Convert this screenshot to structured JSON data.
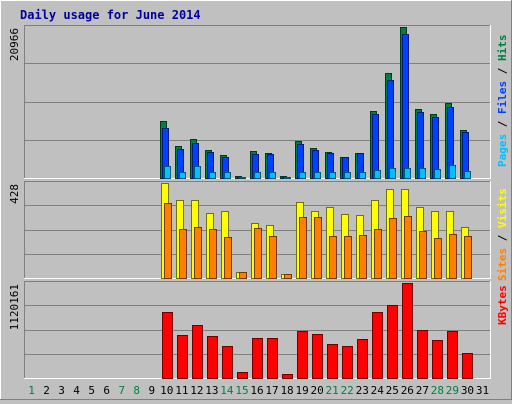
{
  "chart_data": {
    "type": "bar",
    "title": "Daily usage for June 2014",
    "colors": {
      "title": "#0000a0",
      "hits": "#008040",
      "files": "#0040ff",
      "pages": "#00c0ff",
      "visits": "#ffff00",
      "sites": "#ff8000",
      "kbytes": "#ff0000",
      "weekend_day": "#008040",
      "weekday": "#000000"
    },
    "days": [
      "1",
      "2",
      "3",
      "4",
      "5",
      "6",
      "7",
      "8",
      "9",
      "10",
      "11",
      "12",
      "13",
      "14",
      "15",
      "16",
      "17",
      "18",
      "19",
      "20",
      "21",
      "22",
      "23",
      "24",
      "25",
      "26",
      "27",
      "28",
      "29",
      "30",
      "31"
    ],
    "weekend_days": [
      "1",
      "7",
      "8",
      "14",
      "15",
      "21",
      "22",
      "28",
      "29"
    ],
    "panels": [
      {
        "id": "hits",
        "axis_max_label": "20966",
        "ymax": 20966,
        "legend": [
          {
            "text": "Pages",
            "color": "#00c0ff"
          },
          {
            "text": " / ",
            "color": "#000000"
          },
          {
            "text": "Files",
            "color": "#0040ff"
          },
          {
            "text": " / ",
            "color": "#000000"
          },
          {
            "text": "Hits",
            "color": "#008040"
          }
        ],
        "series": [
          {
            "name": "Hits",
            "color": "#008040",
            "values": [
              0,
              0,
              0,
              0,
              0,
              0,
              0,
              0,
              0,
              7940,
              4440,
              5450,
              3920,
              3130,
              210,
              3720,
              3520,
              210,
              5120,
              4120,
              3630,
              2910,
              3520,
              9250,
              14580,
              20966,
              9570,
              8910,
              10380,
              6700,
              0
            ]
          },
          {
            "name": "Files",
            "color": "#0040ff",
            "values": [
              0,
              0,
              0,
              0,
              0,
              0,
              0,
              0,
              0,
              6950,
              3980,
              4840,
              3630,
              2960,
              200,
              3330,
              3340,
              180,
              4770,
              3950,
              3480,
              2860,
              3420,
              8830,
              13610,
              19940,
              9130,
              8460,
              9810,
              6360,
              0
            ]
          },
          {
            "name": "Pages",
            "color": "#00c0ff",
            "values": [
              0,
              0,
              0,
              0,
              0,
              0,
              0,
              0,
              0,
              1640,
              900,
              1640,
              830,
              850,
              100,
              900,
              870,
              100,
              900,
              880,
              830,
              770,
              880,
              1050,
              1400,
              1400,
              1380,
              1210,
              1850,
              920,
              0
            ]
          }
        ]
      },
      {
        "id": "visits",
        "axis_max_label": "428",
        "ymax": 428,
        "legend": [
          {
            "text": "Sites",
            "color": "#ff8000"
          },
          {
            "text": " / ",
            "color": "#000000"
          },
          {
            "text": "Visits",
            "color": "#ffff00"
          }
        ],
        "series": [
          {
            "name": "Visits",
            "color": "#ffff00",
            "values": [
              0,
              0,
              0,
              0,
              0,
              0,
              0,
              0,
              0,
              428,
              350,
              350,
              295,
              300,
              25,
              250,
              240,
              20,
              342,
              300,
              320,
              290,
              285,
              350,
              400,
              400,
              318,
              300,
              303,
              230,
              0
            ]
          },
          {
            "name": "Sites",
            "color": "#ff8000",
            "values": [
              0,
              0,
              0,
              0,
              0,
              0,
              0,
              0,
              0,
              340,
              220,
              230,
              220,
              185,
              25,
              225,
              190,
              20,
              275,
              275,
              190,
              190,
              195,
              220,
              270,
              280,
              210,
              180,
              200,
              190,
              0
            ]
          }
        ]
      },
      {
        "id": "kbytes",
        "axis_max_label": "1120161",
        "ymax": 1120161,
        "legend": [
          {
            "text": "KBytes",
            "color": "#ff0000"
          }
        ],
        "series": [
          {
            "name": "KBytes",
            "color": "#ff0000",
            "values": [
              0,
              0,
              0,
              0,
              0,
              0,
              0,
              0,
              0,
              780000,
              510000,
              620000,
              490000,
              380000,
              70000,
              470000,
              470000,
              50000,
              560000,
              520000,
              400000,
              380000,
              460000,
              780000,
              860000,
              1120161,
              570000,
              450000,
              550000,
              300000,
              0
            ]
          }
        ]
      }
    ]
  }
}
